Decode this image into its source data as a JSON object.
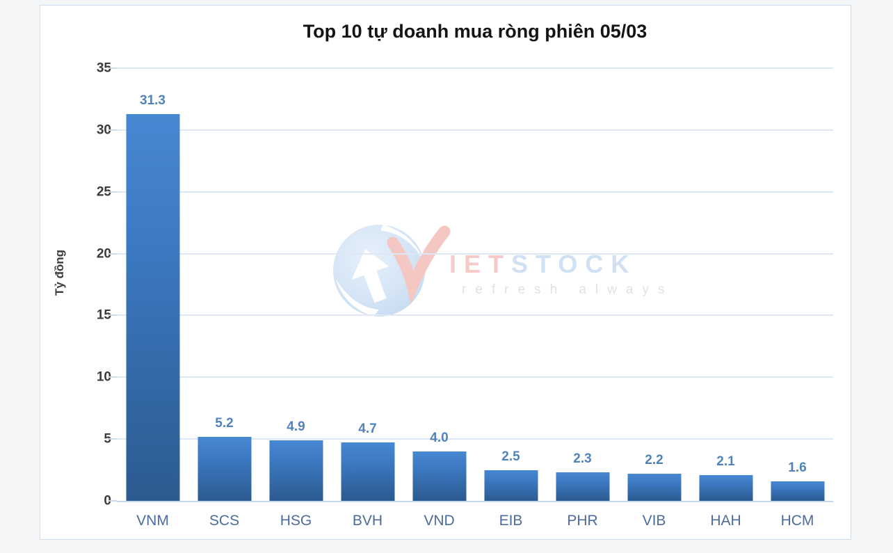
{
  "chart_data": {
    "type": "bar",
    "title": "Top 10 tự doanh mua ròng phiên 05/03",
    "xlabel": "",
    "ylabel": "Tỷ đồng",
    "categories": [
      "VNM",
      "SCS",
      "HSG",
      "BVH",
      "VND",
      "EIB",
      "PHR",
      "VIB",
      "HAH",
      "HCM"
    ],
    "values": [
      31.3,
      5.2,
      4.9,
      4.7,
      4.0,
      2.5,
      2.3,
      2.2,
      2.1,
      1.6
    ],
    "value_labels": [
      "31.3",
      "5.2",
      "4.9",
      "4.7",
      "4.0",
      "2.5",
      "2.3",
      "2.2",
      "2.1",
      "1.6"
    ],
    "ylim": [
      0,
      35
    ],
    "yticks": [
      0,
      5,
      10,
      15,
      20,
      25,
      30,
      35
    ],
    "grid": true,
    "legend": false
  },
  "watermark": {
    "brand_red": "IET",
    "brand_blue": "STOCK",
    "tagline": "refresh always"
  },
  "colors": {
    "bar_top": "#4887d1",
    "bar_bottom": "#2c5a90",
    "gridline": "#dde8f4",
    "baseline": "#c3d6eb",
    "frame_border": "#ccdcee",
    "page_background": "#f4f5f6",
    "title_text": "#141414",
    "value_label_text": "#5282ba",
    "category_label_text": "#4c6b9e",
    "ytick_text": "#3a3a3a",
    "watermark_red": "#eda09a",
    "watermark_blue": "#a9c9e9",
    "watermark_gray": "#c9c9c9"
  }
}
